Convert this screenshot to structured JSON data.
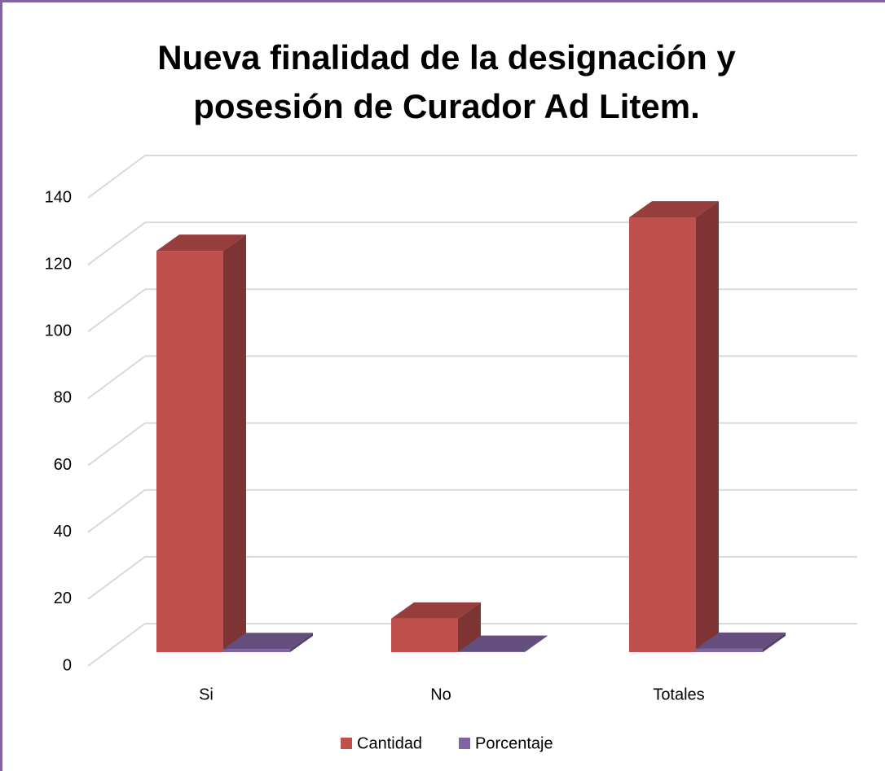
{
  "chart_data": {
    "type": "bar3d",
    "title": "Nueva finalidad de la designación y posesión de Curador Ad Litem.",
    "categories": [
      "Si",
      "No",
      "Totales"
    ],
    "series": [
      {
        "name": "Cantidad",
        "color": "#c0504d",
        "values": [
          120,
          10,
          130
        ]
      },
      {
        "name": "Porcentaje",
        "color": "#8064a2",
        "values": [
          0.92,
          0.08,
          1
        ]
      }
    ],
    "ylim": [
      0,
      140
    ],
    "yticks": [
      0,
      20,
      40,
      60,
      80,
      100,
      120,
      140
    ],
    "grid": true,
    "legend": "bottom"
  }
}
